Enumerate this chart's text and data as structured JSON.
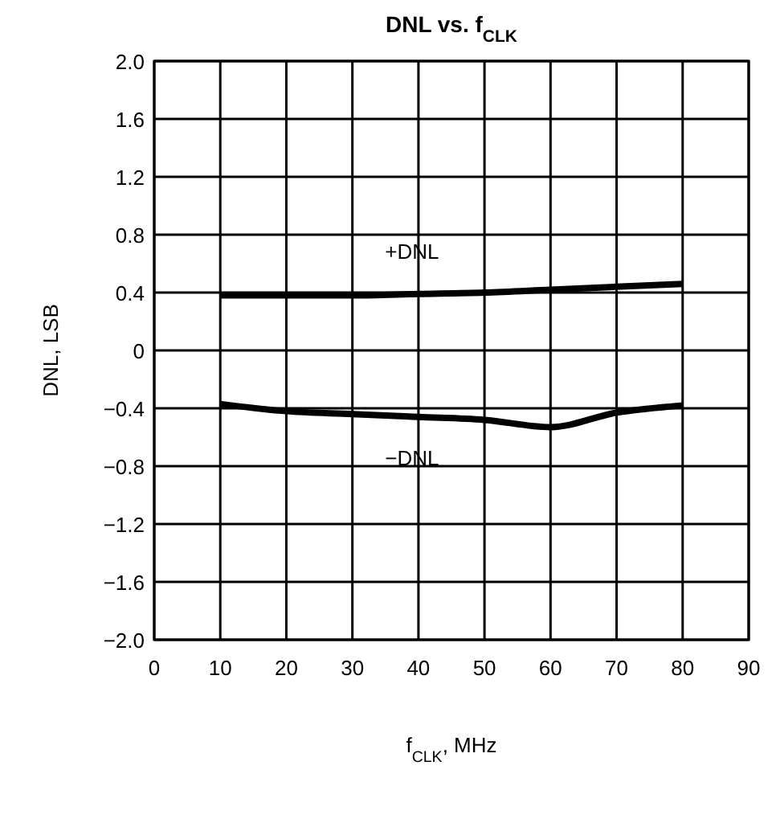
{
  "chart_data": {
    "type": "line",
    "title": "DNL vs. f$_{CLK}$",
    "xlabel": "f$_{CLK}$, MHz",
    "ylabel": "DNL, LSB",
    "xlim": [
      0,
      90
    ],
    "xticks": [
      0,
      10,
      20,
      30,
      40,
      50,
      60,
      70,
      80,
      90
    ],
    "ylim": [
      -2,
      2
    ],
    "yticks": [
      {
        "value": 2,
        "label": "2.0"
      },
      {
        "value": 1.6,
        "label": "1.6"
      },
      {
        "value": 1.2,
        "label": "1.2"
      },
      {
        "value": 0.8,
        "label": "0.8"
      },
      {
        "value": 0.4,
        "label": "0.4"
      },
      {
        "value": 0,
        "label": "0"
      },
      {
        "value": -0.4,
        "label": "−0.4"
      },
      {
        "value": -0.8,
        "label": "−0.8"
      },
      {
        "value": -1.2,
        "label": "−1.2"
      },
      {
        "value": -1.6,
        "label": "−1.6"
      },
      {
        "value": -2,
        "label": "−2.0"
      }
    ],
    "grid": true,
    "marker": "none",
    "line_style": "solid",
    "x": [
      10,
      20,
      30,
      40,
      50,
      60,
      70,
      80
    ],
    "series": [
      {
        "name": "+DNL",
        "color": "#000000",
        "values": [
          0.38,
          0.38,
          0.38,
          0.39,
          0.4,
          0.42,
          0.44,
          0.46
        ]
      },
      {
        "name": "−DNL",
        "color": "#000000",
        "values": [
          -0.37,
          -0.42,
          -0.44,
          -0.46,
          -0.48,
          -0.53,
          -0.43,
          -0.38
        ]
      }
    ]
  }
}
